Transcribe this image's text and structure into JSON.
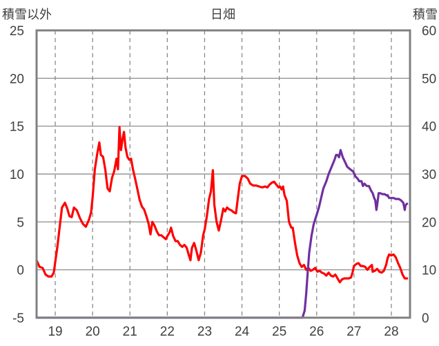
{
  "chart_data": {
    "type": "line",
    "title": "日畑",
    "y_left_label": "積雪以外",
    "y_right_label": "積雪",
    "x_ticks": [
      "19",
      "20",
      "21",
      "22",
      "23",
      "24",
      "25",
      "26",
      "27",
      "28"
    ],
    "y_left_ticks": [
      "25",
      "20",
      "15",
      "10",
      "5",
      "0",
      "-5"
    ],
    "y_right_ticks": [
      "60",
      "50",
      "40",
      "30",
      "20",
      "10",
      "0"
    ],
    "y_left_range": [
      -5,
      25
    ],
    "y_right_range": [
      0,
      60
    ],
    "x_range": [
      18.5,
      28.5
    ],
    "grid": true,
    "series": [
      {
        "axis": "left",
        "color": "#ff0000",
        "points": [
          [
            18.5,
            1.0
          ],
          [
            18.58,
            0.3
          ],
          [
            18.66,
            0.2
          ],
          [
            18.74,
            -0.5
          ],
          [
            18.82,
            -0.7
          ],
          [
            18.9,
            -0.7
          ],
          [
            18.96,
            -0.3
          ],
          [
            19.0,
            0.8
          ],
          [
            19.06,
            2.5
          ],
          [
            19.12,
            4.5
          ],
          [
            19.18,
            6.5
          ],
          [
            19.26,
            7.0
          ],
          [
            19.32,
            6.4
          ],
          [
            19.38,
            5.6
          ],
          [
            19.44,
            5.5
          ],
          [
            19.5,
            6.5
          ],
          [
            19.58,
            6.2
          ],
          [
            19.66,
            5.4
          ],
          [
            19.74,
            4.8
          ],
          [
            19.82,
            4.5
          ],
          [
            19.9,
            5.2
          ],
          [
            19.96,
            6.0
          ],
          [
            20.0,
            7.5
          ],
          [
            20.06,
            10.5
          ],
          [
            20.12,
            12.0
          ],
          [
            20.18,
            13.3
          ],
          [
            20.22,
            12.0
          ],
          [
            20.28,
            11.8
          ],
          [
            20.34,
            10.5
          ],
          [
            20.4,
            8.5
          ],
          [
            20.46,
            8.2
          ],
          [
            20.52,
            9.6
          ],
          [
            20.58,
            10.3
          ],
          [
            20.64,
            11.6
          ],
          [
            20.68,
            10.5
          ],
          [
            20.72,
            14.9
          ],
          [
            20.76,
            12.5
          ],
          [
            20.8,
            13.6
          ],
          [
            20.84,
            14.4
          ],
          [
            20.88,
            12.8
          ],
          [
            20.93,
            11.8
          ],
          [
            20.98,
            11.5
          ],
          [
            21.03,
            11.6
          ],
          [
            21.08,
            10.5
          ],
          [
            21.14,
            9.5
          ],
          [
            21.2,
            8.4
          ],
          [
            21.26,
            7.3
          ],
          [
            21.32,
            6.6
          ],
          [
            21.38,
            6.3
          ],
          [
            21.44,
            5.6
          ],
          [
            21.5,
            4.8
          ],
          [
            21.55,
            3.7
          ],
          [
            21.6,
            5.0
          ],
          [
            21.66,
            4.6
          ],
          [
            21.72,
            4.0
          ],
          [
            21.78,
            3.6
          ],
          [
            21.84,
            3.6
          ],
          [
            21.9,
            3.4
          ],
          [
            21.96,
            3.2
          ],
          [
            22.0,
            3.5
          ],
          [
            22.06,
            3.9
          ],
          [
            22.1,
            4.4
          ],
          [
            22.16,
            3.5
          ],
          [
            22.22,
            3.0
          ],
          [
            22.28,
            3.0
          ],
          [
            22.34,
            2.6
          ],
          [
            22.4,
            2.4
          ],
          [
            22.46,
            2.6
          ],
          [
            22.52,
            2.3
          ],
          [
            22.58,
            1.5
          ],
          [
            22.62,
            1.0
          ],
          [
            22.66,
            2.3
          ],
          [
            22.72,
            2.8
          ],
          [
            22.78,
            2.0
          ],
          [
            22.84,
            1.0
          ],
          [
            22.9,
            1.8
          ],
          [
            22.96,
            3.6
          ],
          [
            23.0,
            4.2
          ],
          [
            23.06,
            5.6
          ],
          [
            23.12,
            7.4
          ],
          [
            23.17,
            8.2
          ],
          [
            23.22,
            10.4
          ],
          [
            23.26,
            6.8
          ],
          [
            23.32,
            5.0
          ],
          [
            23.38,
            4.1
          ],
          [
            23.44,
            5.2
          ],
          [
            23.5,
            6.4
          ],
          [
            23.55,
            6.1
          ],
          [
            23.6,
            6.5
          ],
          [
            23.66,
            6.3
          ],
          [
            23.72,
            6.2
          ],
          [
            23.78,
            6.0
          ],
          [
            23.84,
            5.9
          ],
          [
            23.88,
            7.2
          ],
          [
            23.94,
            9.0
          ],
          [
            24.0,
            9.8
          ],
          [
            24.08,
            9.8
          ],
          [
            24.16,
            9.5
          ],
          [
            24.22,
            9.0
          ],
          [
            24.3,
            8.8
          ],
          [
            24.38,
            8.8
          ],
          [
            24.46,
            8.7
          ],
          [
            24.54,
            8.6
          ],
          [
            24.62,
            8.7
          ],
          [
            24.68,
            8.6
          ],
          [
            24.74,
            8.9
          ],
          [
            24.8,
            9.1
          ],
          [
            24.86,
            9.2
          ],
          [
            24.92,
            8.9
          ],
          [
            24.98,
            8.6
          ],
          [
            25.02,
            8.7
          ],
          [
            25.06,
            8.4
          ],
          [
            25.1,
            8.7
          ],
          [
            25.14,
            7.8
          ],
          [
            25.2,
            7.2
          ],
          [
            25.26,
            5.0
          ],
          [
            25.32,
            4.4
          ],
          [
            25.36,
            4.4
          ],
          [
            25.42,
            2.8
          ],
          [
            25.48,
            1.5
          ],
          [
            25.54,
            0.7
          ],
          [
            25.6,
            0.3
          ],
          [
            25.66,
            0.5
          ],
          [
            25.72,
            0.0
          ],
          [
            25.78,
            0.2
          ],
          [
            25.84,
            -0.1
          ],
          [
            25.9,
            0.0
          ],
          [
            25.96,
            0.2
          ],
          [
            26.02,
            -0.2
          ],
          [
            26.08,
            -0.1
          ],
          [
            26.14,
            -0.3
          ],
          [
            26.2,
            -0.4
          ],
          [
            26.26,
            -0.6
          ],
          [
            26.32,
            -0.3
          ],
          [
            26.38,
            -0.6
          ],
          [
            26.44,
            -0.7
          ],
          [
            26.5,
            -0.5
          ],
          [
            26.56,
            -0.9
          ],
          [
            26.62,
            -1.3
          ],
          [
            26.68,
            -1.0
          ],
          [
            26.74,
            -0.9
          ],
          [
            26.8,
            -0.9
          ],
          [
            26.86,
            -0.9
          ],
          [
            26.92,
            -0.8
          ],
          [
            26.96,
            -0.3
          ],
          [
            27.0,
            0.4
          ],
          [
            27.06,
            0.6
          ],
          [
            27.12,
            0.7
          ],
          [
            27.18,
            0.4
          ],
          [
            27.24,
            0.4
          ],
          [
            27.3,
            0.3
          ],
          [
            27.36,
            0.0
          ],
          [
            27.42,
            0.3
          ],
          [
            27.48,
            0.5
          ],
          [
            27.5,
            -0.2
          ],
          [
            27.56,
            -0.1
          ],
          [
            27.62,
            0.1
          ],
          [
            27.68,
            -0.2
          ],
          [
            27.74,
            -0.3
          ],
          [
            27.8,
            -0.1
          ],
          [
            27.86,
            0.5
          ],
          [
            27.9,
            1.2
          ],
          [
            27.94,
            1.6
          ],
          [
            28.0,
            1.5
          ],
          [
            28.06,
            1.6
          ],
          [
            28.12,
            1.3
          ],
          [
            28.18,
            0.7
          ],
          [
            28.24,
            0.2
          ],
          [
            28.3,
            -0.5
          ],
          [
            28.36,
            -0.9
          ],
          [
            28.42,
            -0.9
          ]
        ]
      },
      {
        "axis": "right",
        "color": "#7030a0",
        "points": [
          [
            18.5,
            0
          ],
          [
            25.62,
            0
          ],
          [
            25.68,
            1.5
          ],
          [
            25.72,
            5.0
          ],
          [
            25.76,
            9.5
          ],
          [
            25.8,
            13.5
          ],
          [
            25.86,
            17.0
          ],
          [
            25.92,
            19.5
          ],
          [
            26.0,
            21.5
          ],
          [
            26.06,
            23.0
          ],
          [
            26.12,
            25.0
          ],
          [
            26.18,
            27.0
          ],
          [
            26.26,
            28.5
          ],
          [
            26.32,
            30.0
          ],
          [
            26.4,
            31.5
          ],
          [
            26.48,
            33.0
          ],
          [
            26.52,
            34.0
          ],
          [
            26.56,
            34.0
          ],
          [
            26.6,
            33.5
          ],
          [
            26.64,
            35.0
          ],
          [
            26.66,
            34.5
          ],
          [
            26.7,
            33.5
          ],
          [
            26.76,
            32.5
          ],
          [
            26.82,
            31.5
          ],
          [
            26.9,
            31.0
          ],
          [
            26.98,
            30.5
          ],
          [
            27.04,
            29.5
          ],
          [
            27.1,
            29.0
          ],
          [
            27.14,
            28.5
          ],
          [
            27.2,
            28.5
          ],
          [
            27.24,
            27.5
          ],
          [
            27.28,
            28.0
          ],
          [
            27.34,
            27.5
          ],
          [
            27.4,
            27.5
          ],
          [
            27.46,
            26.5
          ],
          [
            27.5,
            26.0
          ],
          [
            27.54,
            25.0
          ],
          [
            27.57,
            24.5
          ],
          [
            27.6,
            22.5
          ],
          [
            27.62,
            23.5
          ],
          [
            27.66,
            26.0
          ],
          [
            27.7,
            26.0
          ],
          [
            27.76,
            25.8
          ],
          [
            27.82,
            25.8
          ],
          [
            27.88,
            25.5
          ],
          [
            27.9,
            25.6
          ],
          [
            27.94,
            25.0
          ],
          [
            28.0,
            25.0
          ],
          [
            28.06,
            25.0
          ],
          [
            28.12,
            24.8
          ],
          [
            28.16,
            24.8
          ],
          [
            28.2,
            24.8
          ],
          [
            28.26,
            24.5
          ],
          [
            28.32,
            24.0
          ],
          [
            28.36,
            22.5
          ],
          [
            28.38,
            23.5
          ],
          [
            28.42,
            23.8
          ]
        ]
      }
    ]
  }
}
